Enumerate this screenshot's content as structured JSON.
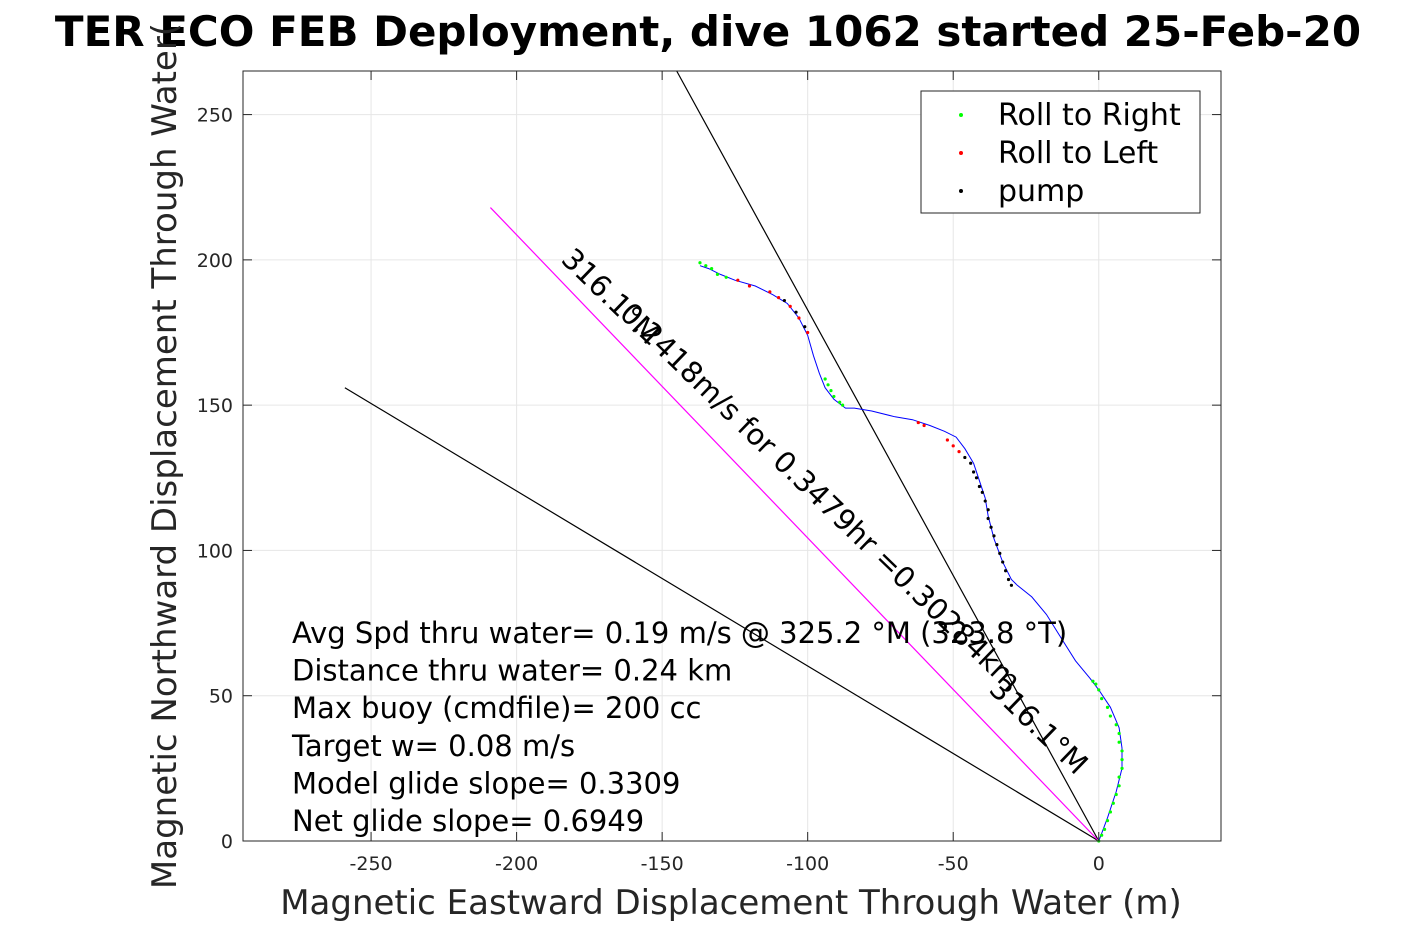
{
  "chart_data": {
    "type": "scatter",
    "title": "TER ECO FEB Deployment, dive 1062 started 25-Feb-20",
    "xlabel": "Magnetic Eastward Displacement Through Water (m)",
    "ylabel": "Magnetic Northward Displacement Through Water(",
    "xlim": [
      -294,
      42
    ],
    "ylim": [
      0,
      265
    ],
    "x_ticks": [
      -250,
      -200,
      -150,
      -100,
      -50,
      0
    ],
    "y_ticks": [
      0,
      50,
      100,
      150,
      200,
      250
    ],
    "grid": true,
    "legend_position": "top-right",
    "legend": [
      {
        "label": "Roll to Right",
        "color": "#00ff00"
      },
      {
        "label": "Roll to Left",
        "color": "#ff0000"
      },
      {
        "label": "pump",
        "color": "#000000"
      }
    ],
    "track": {
      "color": "#0000ff",
      "points": [
        [
          0,
          0
        ],
        [
          3,
          8
        ],
        [
          6,
          17
        ],
        [
          8,
          25
        ],
        [
          8,
          32
        ],
        [
          7,
          39
        ],
        [
          4,
          46
        ],
        [
          0,
          52
        ],
        [
          -3,
          56
        ],
        [
          -8,
          62
        ],
        [
          -13,
          70
        ],
        [
          -18,
          78
        ],
        [
          -23,
          84
        ],
        [
          -28,
          88
        ],
        [
          -30,
          90
        ],
        [
          -33,
          96
        ],
        [
          -36,
          104
        ],
        [
          -38,
          112
        ],
        [
          -39,
          118
        ],
        [
          -41,
          124
        ],
        [
          -43,
          130
        ],
        [
          -46,
          135
        ],
        [
          -49,
          139
        ],
        [
          -53,
          141
        ],
        [
          -58,
          143
        ],
        [
          -64,
          145
        ],
        [
          -70,
          146
        ],
        [
          -78,
          148
        ],
        [
          -84,
          149
        ],
        [
          -87,
          149
        ],
        [
          -91,
          152
        ],
        [
          -94,
          156
        ],
        [
          -96,
          161
        ],
        [
          -98,
          167
        ],
        [
          -100,
          174
        ],
        [
          -103,
          180
        ],
        [
          -107,
          185
        ],
        [
          -112,
          188
        ],
        [
          -118,
          191
        ],
        [
          -125,
          193
        ],
        [
          -130,
          195
        ],
        [
          -134,
          197
        ],
        [
          -137,
          198
        ]
      ]
    },
    "series": [
      {
        "name": "Roll to Right",
        "color": "#00ff00",
        "points": [
          [
            0,
            0
          ],
          [
            1,
            2
          ],
          [
            2,
            4
          ],
          [
            3,
            7
          ],
          [
            4,
            10
          ],
          [
            5,
            13
          ],
          [
            6,
            16
          ],
          [
            7,
            19
          ],
          [
            7,
            22
          ],
          [
            8,
            25
          ],
          [
            8,
            28
          ],
          [
            8,
            31
          ],
          [
            7,
            34
          ],
          [
            7,
            37
          ],
          [
            6,
            40
          ],
          [
            4,
            43
          ],
          [
            3,
            46
          ],
          [
            1,
            49
          ],
          [
            0,
            52
          ],
          [
            -1,
            54
          ],
          [
            -2,
            55
          ],
          [
            -88,
            150
          ],
          [
            -89,
            151
          ],
          [
            -91,
            153
          ],
          [
            -92,
            155
          ],
          [
            -93,
            157
          ],
          [
            -94,
            159
          ],
          [
            -133,
            197
          ],
          [
            -135,
            198
          ],
          [
            -137,
            199
          ],
          [
            -131,
            195
          ],
          [
            -128,
            194
          ]
        ]
      },
      {
        "name": "Roll to Left",
        "color": "#ff0000",
        "points": [
          [
            -62,
            144
          ],
          [
            -60,
            143
          ],
          [
            -52,
            138
          ],
          [
            -50,
            136
          ],
          [
            -48,
            134
          ],
          [
            -100,
            175
          ],
          [
            -103,
            180
          ],
          [
            -106,
            184
          ],
          [
            -110,
            187
          ],
          [
            -113,
            189
          ],
          [
            -120,
            191
          ],
          [
            -124,
            193
          ]
        ]
      },
      {
        "name": "pump",
        "color": "#000000",
        "points": [
          [
            -46,
            132
          ],
          [
            -44,
            130
          ],
          [
            -43,
            127
          ],
          [
            -42,
            125
          ],
          [
            -41,
            122
          ],
          [
            -40,
            120
          ],
          [
            -39,
            117
          ],
          [
            -38,
            114
          ],
          [
            -38,
            111
          ],
          [
            -37,
            108
          ],
          [
            -36,
            105
          ],
          [
            -35,
            102
          ],
          [
            -34,
            99
          ],
          [
            -33,
            96
          ],
          [
            -32,
            93
          ],
          [
            -31,
            90
          ],
          [
            -30,
            88
          ],
          [
            -101,
            177
          ],
          [
            -104,
            182
          ],
          [
            -108,
            186
          ]
        ]
      }
    ],
    "reference_lines": [
      {
        "color": "#000000",
        "from": [
          0,
          0
        ],
        "to": [
          -145,
          265
        ]
      },
      {
        "color": "#000000",
        "from": [
          0,
          0
        ],
        "to": [
          -259,
          156
        ]
      },
      {
        "color": "#ff00ff",
        "from": [
          0,
          0
        ],
        "to": [
          -209,
          218
        ]
      }
    ],
    "annotations": [
      {
        "text": "316.1°M",
        "at": [
          -170,
          185
        ],
        "angle": 44
      },
      {
        "text": "0.2418m/s for 0.3479hr =0.30284km",
        "at": [
          -98,
          116
        ],
        "angle": 44
      },
      {
        "text": "316.1°M",
        "at": [
          -23,
          37
        ],
        "angle": 44
      }
    ],
    "info_lines": [
      "Avg Spd thru water=  0.19 m/s @ 325.2 °M (323.8 °T)",
      "Distance thru water=  0.24 km",
      "Max buoy (cmdfile)= 200 cc",
      "Target w= 0.08 m/s",
      "Model glide slope= 0.3309",
      "Net glide slope= 0.6949"
    ]
  }
}
